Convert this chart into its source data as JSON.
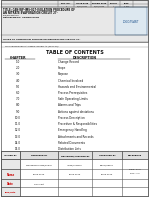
{
  "toc_title": "TABLE OF CONTENTS",
  "col_chapter": "CHAPTER",
  "col_desc": "DESCRIPTION",
  "toc_rows": [
    [
      "1.0",
      "Change Record"
    ],
    [
      "2.0",
      "Scope"
    ],
    [
      "3.0",
      "Purpose"
    ],
    [
      "4.0",
      "Chemical Involved"
    ],
    [
      "5.0",
      "Hazards and Environmental"
    ],
    [
      "6.0",
      "Process Prerequisites"
    ],
    [
      "7.0",
      "Safe Operating Limits"
    ],
    [
      "8.0",
      "Alarms and Trips"
    ],
    [
      "9.0",
      "Actions against deviations"
    ],
    [
      "10.0",
      "Process Description"
    ],
    [
      "11.0",
      "Procedure & Responsibilities"
    ],
    [
      "12.0",
      "Emergency Handling"
    ],
    [
      "13.0",
      "Attachments and Records"
    ],
    [
      "14.0",
      "Related Documents"
    ],
    [
      "15.0",
      "Distribution Lists"
    ]
  ],
  "header_top_labels": [
    "REV. NO.",
    "ISSUE DATE",
    "REVIEW DATE",
    "STATUS",
    "PAGE"
  ],
  "header_top_values": [
    "1",
    "09/09/2021",
    "09/09/2022",
    "A",
    "1 of 1"
  ],
  "title_line1": "TITLE: CAN-WP-IMS-027-ISOLATION PROCEDURE OF",
  "title_line2": "AN NITRATE EVAPORATION CIRCUIT 27-",
  "title_line3": "xxx/Production",
  "dept_line": "DEPARTMENT:  PRODUCTION",
  "logo_text": "LOGO/PLANT",
  "guide_line": "GUIDE TO AMMONIUM NITRATE INCORPORATION CIRCUIT 27-",
  "sect_line": "THIS PROCEDURE HAS BEEN ISSUED AS (SECT.18)",
  "footer_labels": [
    "ISSUED BY",
    "PREPARED BY",
    "REVIEWED/CHECKED BY",
    "APPROVED BY",
    "REFERENCE"
  ],
  "footer_name_label": "Name",
  "footer_date_label": "Date",
  "footer_sign_label": "Sign/date",
  "footer_prepared_name": "Muhammad Irfan/Khalid",
  "footer_reviewed_name": "Imran/Luqman",
  "footer_approved_name": "Safeer/Kashif",
  "footer_prepared_date": "18.09.2020",
  "footer_reviewed_date": "18.09.2020",
  "footer_approved_date": "18.09.2020",
  "footer_sign_val": "OHS Cert",
  "footer_ref1": "ORIG: V1.0",
  "footer_ref2": "REV.: 1.2",
  "bg_color": "#ffffff",
  "line_color": "#555555",
  "text_color": "#111111",
  "red_color": "#cc0000",
  "blue_color": "#1a4f8a",
  "header_bg": "#e8e8e8",
  "footer_label_bg": "#dddddd"
}
